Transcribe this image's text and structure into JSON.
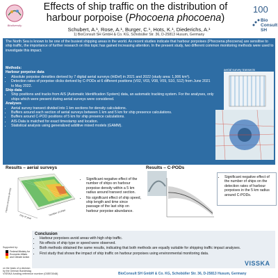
{
  "header": {
    "title_part1": "Effects of ship traffic on the distribution of",
    "title_part2": "harbour porpoise (",
    "title_italic": "Phocoena phocoena",
    "title_part3": ")",
    "authors": "Schubert, A.¹, Rose, A.¹, Burger, C.¹, Hots, K.¹, Diederichs, A.¹",
    "affiliation": "1) BioConsult SH GmbH & Co. KG, Schobüller Str. 36, D-25813 Husum, Germany",
    "poster_number": "100"
  },
  "logos": {
    "right_line1": "Bio",
    "right_line2": "Consult",
    "right_line3": "SH",
    "left_caption": "Biodiversity"
  },
  "intro": {
    "text": "The North Sea is known to be one of the busiest shipping areas in the world. As recent studies indicate that harbour porpoises (Phocoena phocoena) are sensitive to ship traffic, the importance of further research on this topic has gained increasing attention. In the present study, two different common monitoring methods were used to investigate this impact."
  },
  "methods": {
    "heading": "Methods:",
    "harbour_heading": "Harbour porpoise data",
    "harbour_items": [
      "Absolute porpoise densities derived by 7 digital aerial surveys (HiDef) in 2021 and 2022 (study area: 1,906 km²).",
      "Detection rates of porpoise clicks derived by C-PODs at 6 different positions (V02, V03, V08, V09, S10, S12) from June 2021 to May 2022."
    ],
    "ship_heading": "Ship data",
    "ship_items": [
      "Ship positions and tracks from AIS (Automatic Identification System) data, an automatic tracking system. For the analyses, only ships which were present during aerial surveys were considered."
    ],
    "analyses_heading": "Analyses",
    "analyses_items": [
      "Aerial survey transect divided into 1 km sections for density calculations.",
      "Buffers around each section of aerial surveys between 1 km and 5 km for ship presence calculations.",
      "Buffers around C-POD positions of 5 km for ship presence calculations.",
      "AIS-Data is matched for exact timestamp and location.",
      "Statistical analysis using generalized additive mixed models (GAMM)."
    ],
    "map_label": "aerial survey transects"
  },
  "results_aerial": {
    "title": "Results – aerial surveys",
    "bullets": [
      "Significant negative effect of the number of ships on harbour porpoise density within a 5 km radius around transect section.",
      "No significant effect of ship speed, ship length and time since passage of the last ship on harbour porpoise abundance."
    ],
    "axis_z": "Harbour porpoise density",
    "axis_x": "Number of ships",
    "axis_y": "Day of year"
  },
  "results_cpod": {
    "title": "Results – C-PODs",
    "bullets": [
      "Significant negative effect of the number of ships on the detection rates of harbour porpoises in the 5 km radius around C-PODs."
    ]
  },
  "conclusion": {
    "title": "Conclusion",
    "items": [
      "Harbour porpoises avoid areas with high ship traffic.",
      "No effects of ship type or speed were observed.",
      "Both methods obtained the same results, indicating that both methods are equally suitable for shipping traffic impact analyses.",
      "First study that shows the impact of ship traffic on harbour porpoises using environmental monitoring data."
    ]
  },
  "footer": {
    "company": "BioConsult SH GmbH & Co. KG, Schobüller Str. 36, D-25813 Husum, Germany",
    "funding": "VISSKA funding reference number (03EE3048)",
    "supported_by": "Supported by:",
    "ministry": "Federal Ministry for Economic Affairs and Climate Action",
    "ministry_note": "on the basis of a decision by the German Bundestag",
    "vissky": "VISSKA"
  },
  "colors": {
    "intro_bg": "#2e6da4",
    "accent": "#2e5a88"
  }
}
